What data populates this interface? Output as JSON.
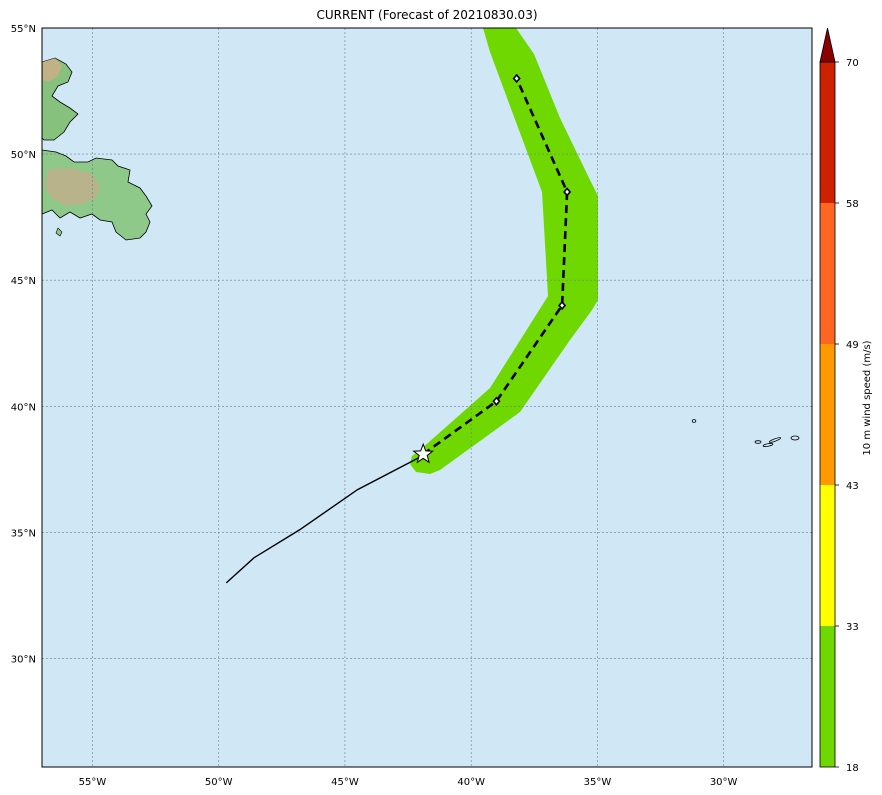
{
  "title": "CURRENT (Forecast of 20210830.03)",
  "lat_labels": [
    "55°N",
    "50°N",
    "45°N",
    "40°N",
    "35°N",
    "30°N"
  ],
  "lon_labels": [
    "55°W",
    "50°W",
    "45°W",
    "40°W",
    "35°W",
    "30°W"
  ],
  "colorbar": {
    "label": "10 m wind speed (m/s)",
    "ticks": [
      "18",
      "33",
      "43",
      "49",
      "58",
      "70"
    ],
    "colors": [
      "#6fd800",
      "#ffff00",
      "#ff9900",
      "#ff6622",
      "#cc2200",
      "#8b0000"
    ]
  },
  "colors": {
    "ocean": "#d0e8f6",
    "swath": "#6fd800",
    "grid": "#6b7f8f"
  },
  "track": {
    "past": [
      [
        -49.7,
        33.0
      ],
      [
        -48.6,
        34.0
      ],
      [
        -46.8,
        35.1
      ],
      [
        -44.5,
        36.7
      ],
      [
        -42.0,
        38.0
      ]
    ],
    "current": [
      -41.9,
      38.1
    ],
    "forecast": [
      [
        -41.9,
        38.1
      ],
      [
        -39.0,
        40.2
      ],
      [
        -36.4,
        44.0
      ],
      [
        -36.2,
        48.5
      ],
      [
        -38.2,
        53.0
      ]
    ]
  },
  "legend_icons": [
    "current-position-star-icon"
  ]
}
